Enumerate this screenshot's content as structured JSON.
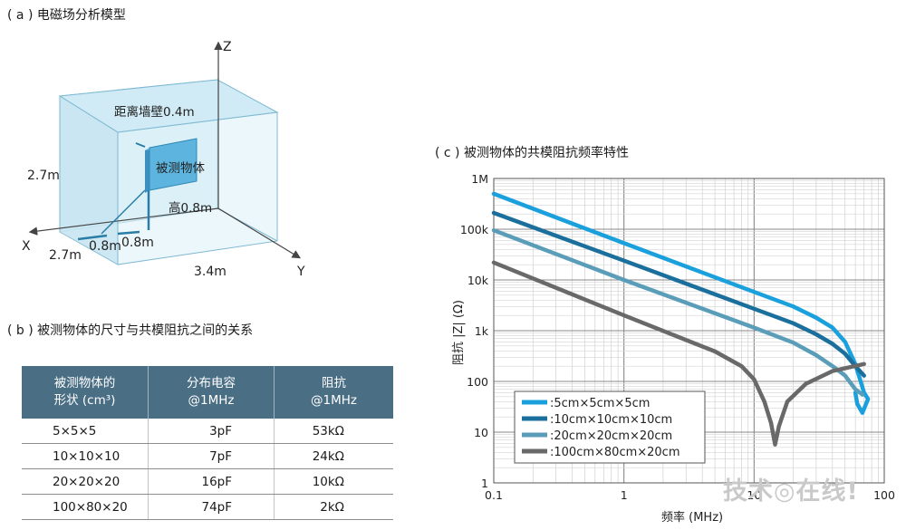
{
  "panel_a": {
    "title": "( a ) 电磁场分析模型",
    "axis_z": "Z",
    "axis_x": "X",
    "axis_y": "Y",
    "wall_distance": "距离墙壁0.4m",
    "object_label": "被测物体",
    "height_label": "高0.8m",
    "room_height": "2.7m",
    "room_depth": "2.7m",
    "room_width": "3.4m",
    "offset_x": "0.8m",
    "offset_y": "0.8m"
  },
  "panel_b": {
    "title": "( b ) 被测物体的尺寸与共模阻抗之间的关系",
    "header_shape_line1": "被测物体的",
    "header_shape_line2": "形状 (cm³)",
    "header_cap_line1": "分布电容",
    "header_cap_line2": "@1MHz",
    "header_imp_line1": "阻抗",
    "header_imp_line2": "@1MHz",
    "rows": [
      [
        "5×5×5",
        "3pF",
        "53kΩ"
      ],
      [
        "10×10×10",
        "7pF",
        "24kΩ"
      ],
      [
        "20×20×20",
        "16pF",
        "10kΩ"
      ],
      [
        "100×80×20",
        "74pF",
        "2kΩ"
      ]
    ]
  },
  "panel_c": {
    "title": "( c ) 被测物体的共模阻抗频率特性"
  },
  "chart_data": {
    "type": "line",
    "xscale": "log",
    "yscale": "log",
    "xlabel": "频率 (MHz)",
    "ylabel": "阻抗 |Z| (Ω)",
    "xlim": [
      0.1,
      100
    ],
    "ylim": [
      1,
      1000000
    ],
    "x_ticks": [
      "0.1",
      "1",
      "10",
      "100"
    ],
    "y_ticks": [
      "1",
      "10",
      "100",
      "1k",
      "10k",
      "100k",
      "1M"
    ],
    "grid": true,
    "legend_position": "bottom-left",
    "series": [
      {
        "name": ":5cm×5cm×5cm",
        "color": "#1aa0dd",
        "x": [
          0.1,
          1,
          10,
          20,
          30,
          40,
          50,
          60,
          70,
          75,
          68,
          62,
          60
        ],
        "y": [
          500000,
          53000,
          5800,
          3000,
          1800,
          1150,
          600,
          220,
          60,
          45,
          24,
          36,
          60
        ]
      },
      {
        "name": ":10cm×10cm×10cm",
        "color": "#1a6f9c",
        "x": [
          0.1,
          1,
          10,
          20,
          30,
          40,
          50,
          60,
          70
        ],
        "y": [
          210000,
          24000,
          2700,
          1400,
          850,
          550,
          350,
          200,
          130
        ]
      },
      {
        "name": ":20cm×20cm×20cm",
        "color": "#5a9db9",
        "x": [
          0.1,
          1,
          10,
          20,
          30,
          40,
          50,
          60,
          68
        ],
        "y": [
          95000,
          10000,
          1150,
          580,
          330,
          200,
          130,
          70,
          55
        ]
      },
      {
        "name": ":100cm×80cm×20cm",
        "color": "#696969",
        "x": [
          0.1,
          1,
          5,
          8,
          10,
          12,
          13.5,
          14.5,
          15.5,
          18,
          25,
          40,
          70
        ],
        "y": [
          22000,
          2000,
          390,
          200,
          110,
          40,
          15,
          5.7,
          13,
          40,
          90,
          160,
          220
        ]
      }
    ]
  },
  "watermark": "技术◎在线!"
}
